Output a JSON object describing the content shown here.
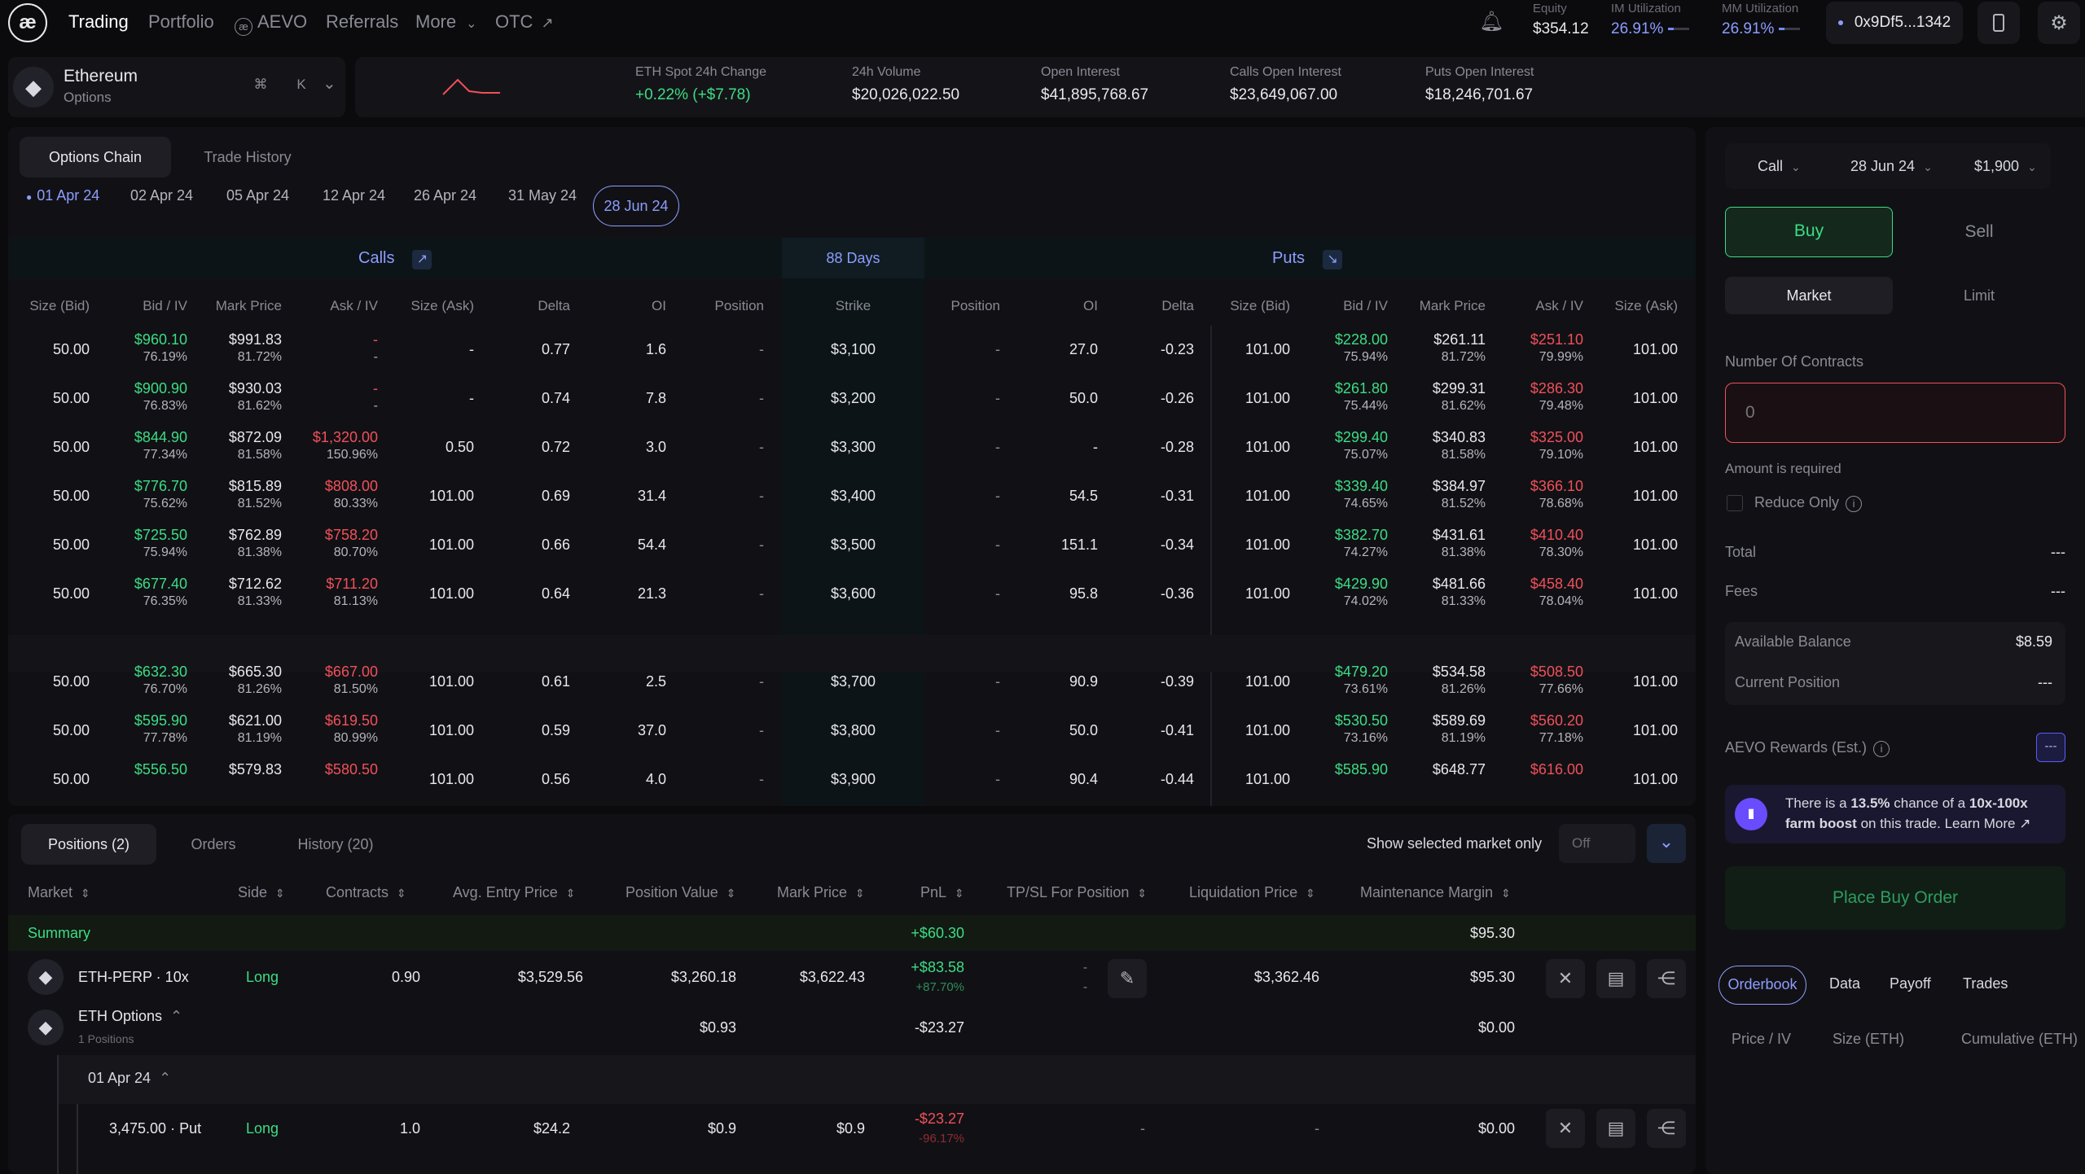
{
  "nav": {
    "brand": "Trading",
    "items": [
      "Portfolio",
      "AEVO",
      "Referrals",
      "More",
      "OTC"
    ],
    "equity": {
      "label": "Equity",
      "value": "$354.12"
    },
    "im": {
      "label": "IM Utilization",
      "value": "26.91%",
      "level": 0.27
    },
    "mm": {
      "label": "MM Utilization",
      "value": "26.91%",
      "level": 0.27
    },
    "wallet": "0x9Df5...1342"
  },
  "market": {
    "name": "Ethereum",
    "type": "Options",
    "shortcut_k": "K",
    "shortcut_cmd": "⌘",
    "stats": [
      {
        "label": "ETH Spot 24h Change",
        "value": "+0.22% (+$7.78)"
      },
      {
        "label": "24h Volume",
        "value": "$20,026,022.50"
      },
      {
        "label": "Open Interest",
        "value": "$41,895,768.67"
      },
      {
        "label": "Calls Open Interest",
        "value": "$23,649,067.00"
      },
      {
        "label": "Puts Open Interest",
        "value": "$18,246,701.67"
      }
    ]
  },
  "chain": {
    "tabs": [
      "Options Chain",
      "Trade History"
    ],
    "dates": [
      "01 Apr 24",
      "02 Apr 24",
      "05 Apr 24",
      "12 Apr 24",
      "26 Apr 24",
      "31 May 24",
      "28 Jun 24"
    ],
    "calls_label": "Calls",
    "puts_label": "Puts",
    "days": "88 Days",
    "headers": [
      "Size (Bid)",
      "Bid / IV",
      "Mark Price",
      "Ask / IV",
      "Size (Ask)",
      "Delta",
      "OI",
      "Position",
      "Strike",
      "Position",
      "OI",
      "Delta",
      "Size (Bid)",
      "Bid / IV",
      "Mark Price",
      "Ask / IV",
      "Size (Ask)"
    ],
    "rows": [
      {
        "c_sb": "50.00",
        "c_bid": "$960.10",
        "c_biv": "76.19%",
        "c_mark": "$991.83",
        "c_miv": "81.72%",
        "c_ask": "-",
        "c_aiv": "-",
        "c_sa": "-",
        "c_delta": "0.77",
        "c_oi": "1.6",
        "c_pos": "-",
        "strike": "$3,100",
        "p_pos": "-",
        "p_oi": "27.0",
        "p_delta": "-0.23",
        "p_sb": "101.00",
        "p_bid": "$228.00",
        "p_biv": "75.94%",
        "p_mark": "$261.11",
        "p_miv": "81.72%",
        "p_ask": "$251.10",
        "p_aiv": "79.99%",
        "p_sa": "101.00"
      },
      {
        "c_sb": "50.00",
        "c_bid": "$900.90",
        "c_biv": "76.83%",
        "c_mark": "$930.03",
        "c_miv": "81.62%",
        "c_ask": "-",
        "c_aiv": "-",
        "c_sa": "-",
        "c_delta": "0.74",
        "c_oi": "7.8",
        "c_pos": "-",
        "strike": "$3,200",
        "p_pos": "-",
        "p_oi": "50.0",
        "p_delta": "-0.26",
        "p_sb": "101.00",
        "p_bid": "$261.80",
        "p_biv": "75.44%",
        "p_mark": "$299.31",
        "p_miv": "81.62%",
        "p_ask": "$286.30",
        "p_aiv": "79.48%",
        "p_sa": "101.00"
      },
      {
        "c_sb": "50.00",
        "c_bid": "$844.90",
        "c_biv": "77.34%",
        "c_mark": "$872.09",
        "c_miv": "81.58%",
        "c_ask": "$1,320.00",
        "c_aiv": "150.96%",
        "c_sa": "0.50",
        "c_delta": "0.72",
        "c_oi": "3.0",
        "c_pos": "-",
        "strike": "$3,300",
        "p_pos": "-",
        "p_oi": "-",
        "p_delta": "-0.28",
        "p_sb": "101.00",
        "p_bid": "$299.40",
        "p_biv": "75.07%",
        "p_mark": "$340.83",
        "p_miv": "81.58%",
        "p_ask": "$325.00",
        "p_aiv": "79.10%",
        "p_sa": "101.00"
      },
      {
        "c_sb": "50.00",
        "c_bid": "$776.70",
        "c_biv": "75.62%",
        "c_mark": "$815.89",
        "c_miv": "81.52%",
        "c_ask": "$808.00",
        "c_aiv": "80.33%",
        "c_sa": "101.00",
        "c_delta": "0.69",
        "c_oi": "31.4",
        "c_pos": "-",
        "strike": "$3,400",
        "p_pos": "-",
        "p_oi": "54.5",
        "p_delta": "-0.31",
        "p_sb": "101.00",
        "p_bid": "$339.40",
        "p_biv": "74.65%",
        "p_mark": "$384.97",
        "p_miv": "81.52%",
        "p_ask": "$366.10",
        "p_aiv": "78.68%",
        "p_sa": "101.00"
      },
      {
        "c_sb": "50.00",
        "c_bid": "$725.50",
        "c_biv": "75.94%",
        "c_mark": "$762.89",
        "c_miv": "81.38%",
        "c_ask": "$758.20",
        "c_aiv": "80.70%",
        "c_sa": "101.00",
        "c_delta": "0.66",
        "c_oi": "54.4",
        "c_pos": "-",
        "strike": "$3,500",
        "p_pos": "-",
        "p_oi": "151.1",
        "p_delta": "-0.34",
        "p_sb": "101.00",
        "p_bid": "$382.70",
        "p_biv": "74.27%",
        "p_mark": "$431.61",
        "p_miv": "81.38%",
        "p_ask": "$410.40",
        "p_aiv": "78.30%",
        "p_sa": "101.00"
      },
      {
        "c_sb": "50.00",
        "c_bid": "$677.40",
        "c_biv": "76.35%",
        "c_mark": "$712.62",
        "c_miv": "81.33%",
        "c_ask": "$711.20",
        "c_aiv": "81.13%",
        "c_sa": "101.00",
        "c_delta": "0.64",
        "c_oi": "21.3",
        "c_pos": "-",
        "strike": "$3,600",
        "p_pos": "-",
        "p_oi": "95.8",
        "p_delta": "-0.36",
        "p_sb": "101.00",
        "p_bid": "$429.90",
        "p_biv": "74.02%",
        "p_mark": "$481.66",
        "p_miv": "81.33%",
        "p_ask": "$458.40",
        "p_aiv": "78.04%",
        "p_sa": "101.00"
      },
      {
        "c_sb": "50.00",
        "c_bid": "$632.30",
        "c_biv": "76.70%",
        "c_mark": "$665.30",
        "c_miv": "81.26%",
        "c_ask": "$667.00",
        "c_aiv": "81.50%",
        "c_sa": "101.00",
        "c_delta": "0.61",
        "c_oi": "2.5",
        "c_pos": "-",
        "strike": "$3,700",
        "p_pos": "-",
        "p_oi": "90.9",
        "p_delta": "-0.39",
        "p_sb": "101.00",
        "p_bid": "$479.20",
        "p_biv": "73.61%",
        "p_mark": "$534.58",
        "p_miv": "81.26%",
        "p_ask": "$508.50",
        "p_aiv": "77.66%",
        "p_sa": "101.00"
      },
      {
        "c_sb": "50.00",
        "c_bid": "$595.90",
        "c_biv": "77.78%",
        "c_mark": "$621.00",
        "c_miv": "81.19%",
        "c_ask": "$619.50",
        "c_aiv": "80.99%",
        "c_sa": "101.00",
        "c_delta": "0.59",
        "c_oi": "37.0",
        "c_pos": "-",
        "strike": "$3,800",
        "p_pos": "-",
        "p_oi": "50.0",
        "p_delta": "-0.41",
        "p_sb": "101.00",
        "p_bid": "$530.50",
        "p_biv": "73.16%",
        "p_mark": "$589.69",
        "p_miv": "81.19%",
        "p_ask": "$560.20",
        "p_aiv": "77.18%",
        "p_sa": "101.00"
      },
      {
        "c_sb": "50.00",
        "c_bid": "$556.50",
        "c_biv": "",
        "c_mark": "$579.83",
        "c_miv": "",
        "c_ask": "$580.50",
        "c_aiv": "",
        "c_sa": "101.00",
        "c_delta": "0.56",
        "c_oi": "4.0",
        "c_pos": "-",
        "strike": "$3,900",
        "p_pos": "-",
        "p_oi": "90.4",
        "p_delta": "-0.44",
        "p_sb": "101.00",
        "p_bid": "$585.90",
        "p_biv": "",
        "p_mark": "$648.77",
        "p_miv": "",
        "p_ask": "$616.00",
        "p_aiv": "",
        "p_sa": "101.00"
      }
    ]
  },
  "positions": {
    "tabs": [
      "Positions (2)",
      "Orders",
      "History (20)"
    ],
    "show_selected": "Show selected market only",
    "toggle": "Off",
    "headers": [
      "Market",
      "Side",
      "Contracts",
      "Avg. Entry Price",
      "Position Value",
      "Mark Price",
      "PnL",
      "TP/SL For Position",
      "Liquidation Price",
      "Maintenance Margin"
    ],
    "summary": {
      "label": "Summary",
      "pnl": "+$60.30",
      "margin": "$95.30"
    },
    "perp": {
      "market": "ETH-PERP · 10x",
      "side": "Long",
      "contracts": "0.90",
      "entry": "$3,529.56",
      "value": "$3,260.18",
      "mark": "$3,622.43",
      "pnl": "+$83.58",
      "pnl_pct": "+87.70%",
      "tpsl1": "-",
      "tpsl2": "-",
      "liq": "$3,362.46",
      "margin": "$95.30"
    },
    "options": {
      "market": "ETH Options",
      "sub": "1 Positions",
      "value": "$0.93",
      "pnl": "-$23.27",
      "margin": "$0.00"
    },
    "expiry": "01 Apr 24",
    "put": {
      "market": "3,475.00 · Put",
      "side": "Long",
      "contracts": "1.0",
      "entry": "$24.2",
      "value": "$0.9",
      "mark": "$0.9",
      "pnl": "-$23.27",
      "pnl_pct": "-96.17%",
      "tpsl": "-",
      "liq": "-",
      "margin": "$0.00"
    }
  },
  "order": {
    "type": "Call",
    "expiry": "28 Jun 24",
    "strike": "$1,900",
    "buy": "Buy",
    "sell": "Sell",
    "market": "Market",
    "limit": "Limit",
    "contracts_label": "Number Of Contracts",
    "contracts_placeholder": "0",
    "error": "Amount is required",
    "reduce_only": "Reduce Only",
    "total_label": "Total",
    "total": "---",
    "fees_label": "Fees",
    "fees": "---",
    "balance_label": "Available Balance",
    "balance": "$8.59",
    "position_label": "Current Position",
    "position": "---",
    "rewards_label": "AEVO Rewards (Est.)",
    "rewards": "---",
    "boost_pre": "There is a ",
    "boost_pct": "13.5%",
    "boost_mid": " chance of a ",
    "boost_mult": "10x-100x",
    "boost_b": "farm boost",
    "boost_post": " on this trade. Learn More",
    "place": "Place Buy Order",
    "book_tabs": [
      "Orderbook",
      "Data",
      "Payoff",
      "Trades"
    ],
    "book_headers": [
      "Price / IV",
      "Size (ETH)",
      "Cumulative (ETH)"
    ]
  }
}
